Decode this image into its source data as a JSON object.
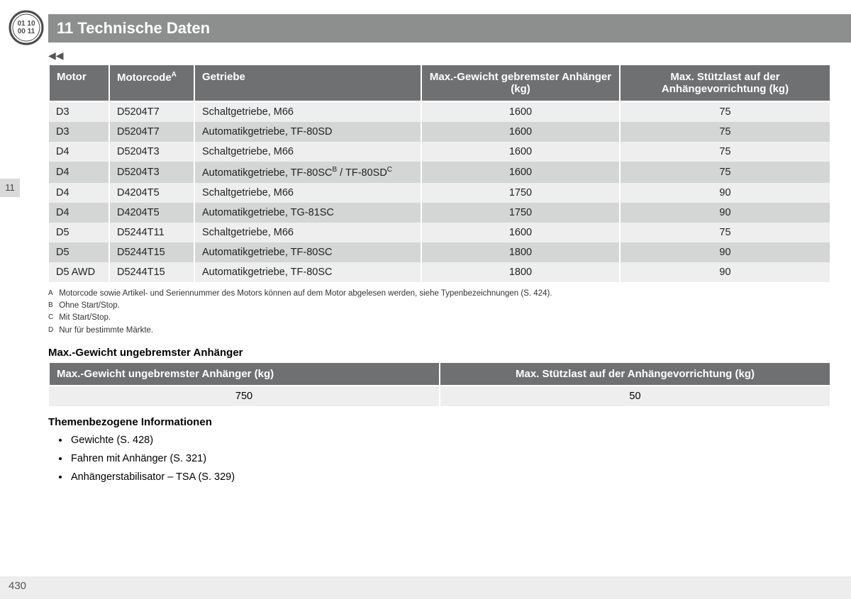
{
  "header": {
    "title": "11 Technische Daten",
    "icon_label": "binary-circle-icon"
  },
  "continuation_glyph": "◀◀",
  "side_tab": "11",
  "page_number": "430",
  "main_table": {
    "col_widths": [
      "85px",
      "120px",
      "320px",
      "280px",
      ""
    ],
    "headers": [
      {
        "text": "Motor",
        "align": "left"
      },
      {
        "text": "Motorcode",
        "sup": "A",
        "align": "left"
      },
      {
        "text": "Getriebe",
        "align": "left"
      },
      {
        "text": "Max.-Gewicht gebremster Anhänger (kg)",
        "align": "center"
      },
      {
        "text": "Max. Stützlast auf der Anhängevorrichtung (kg)",
        "align": "center"
      }
    ],
    "rows": [
      {
        "motor": "D3",
        "code": "D5204T7",
        "getriebe": "Schaltgetriebe, M66",
        "w": "1600",
        "s": "75"
      },
      {
        "motor": "D3",
        "code": "D5204T7",
        "getriebe": "Automatikgetriebe, TF-80SD",
        "w": "1600",
        "s": "75"
      },
      {
        "motor": "D4",
        "code": "D5204T3",
        "getriebe": "Schaltgetriebe, M66",
        "w": "1600",
        "s": "75"
      },
      {
        "motor": "D4",
        "code": "D5204T3",
        "getriebe_pre": "Automatikgetriebe, TF-80SC",
        "getriebe_sup1": "B",
        "getriebe_mid": " / TF-80SD",
        "getriebe_sup2": "C",
        "w": "1600",
        "s": "75"
      },
      {
        "motor": "D4",
        "code": "D4204T5",
        "getriebe": "Schaltgetriebe, M66",
        "w": "1750",
        "s": "90"
      },
      {
        "motor": "D4",
        "code": "D4204T5",
        "getriebe": "Automatikgetriebe, TG-81SC",
        "w": "1750",
        "s": "90"
      },
      {
        "motor": "D5",
        "code": "D5244T11",
        "getriebe": "Schaltgetriebe, M66",
        "w": "1600",
        "s": "75"
      },
      {
        "motor": "D5",
        "code": "D5244T15",
        "getriebe": "Automatikgetriebe, TF-80SC",
        "w": "1800",
        "s": "90"
      },
      {
        "motor": "D5 AWD",
        "code": "D5244T15",
        "getriebe": "Automatikgetriebe, TF-80SC",
        "w": "1800",
        "s": "90"
      }
    ]
  },
  "footnotes": [
    {
      "lbl": "A",
      "text": "Motorcode sowie Artikel- und Seriennummer des Motors können auf dem Motor abgelesen werden, siehe Typenbezeichnungen (S. 424)."
    },
    {
      "lbl": "B",
      "text": "Ohne Start/Stop."
    },
    {
      "lbl": "C",
      "text": "Mit Start/Stop."
    },
    {
      "lbl": "D",
      "text": "Nur für bestimmte Märkte."
    }
  ],
  "second_section": {
    "heading": "Max.-Gewicht ungebremster Anhänger",
    "headers": [
      {
        "text": "Max.-Gewicht ungebremster Anhänger (kg)",
        "align": "left"
      },
      {
        "text": "Max. Stützlast auf der Anhängevorrichtung (kg)",
        "align": "center"
      }
    ],
    "row": {
      "c1": "750",
      "c2": "50"
    }
  },
  "related": {
    "heading": "Themenbezogene Informationen",
    "items": [
      "Gewichte (S. 428)",
      "Fahren mit Anhänger (S. 321)",
      "Anhängerstabilisator – TSA (S. 329)"
    ]
  }
}
